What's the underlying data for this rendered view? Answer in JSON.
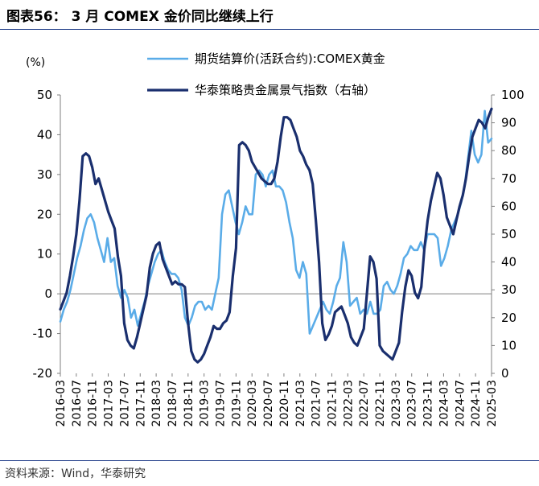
{
  "figure": {
    "title": "图表56： 3 月 COMEX 金价同比继续上行",
    "source": "资料来源：Wind，华泰研究"
  },
  "chart_data": {
    "type": "line",
    "y_left_label": "(%)",
    "y_left_range": [
      -20,
      50
    ],
    "y_left_ticks": [
      "50",
      "40",
      "30",
      "20",
      "10",
      "0",
      "-10",
      "-20"
    ],
    "y_right_range": [
      0,
      100
    ],
    "y_right_ticks": [
      "100",
      "90",
      "80",
      "70",
      "60",
      "50",
      "40",
      "30",
      "20",
      "10",
      "0"
    ],
    "x_ticks": [
      "2016-03",
      "2016-07",
      "2016-11",
      "2017-03",
      "2017-07",
      "2017-11",
      "2018-03",
      "2018-07",
      "2018-11",
      "2019-03",
      "2019-07",
      "2019-11",
      "2020-03",
      "2020-07",
      "2020-11",
      "2021-03",
      "2021-07",
      "2021-11",
      "2022-03",
      "2022-07",
      "2022-11",
      "2023-03",
      "2023-07",
      "2023-11",
      "2024-03",
      "2024-07",
      "2024-11",
      "2025-03"
    ],
    "series": [
      {
        "name": "期货结算价(活跃合约):COMEX黄金",
        "axis": "left",
        "color": "#5aace8",
        "values": [
          -7,
          -4,
          -2,
          1,
          5,
          9,
          12,
          16,
          19,
          20,
          18,
          14,
          11,
          8,
          14,
          8,
          9,
          2,
          -1,
          1,
          -1,
          -6,
          -4,
          -8,
          -5,
          -2,
          2,
          5,
          8,
          10,
          11,
          8,
          6,
          5,
          5,
          4,
          1,
          -6,
          -8,
          -6,
          -3,
          -2,
          -2,
          -4,
          -3,
          -4,
          0,
          4,
          20,
          25,
          26,
          22,
          18,
          15,
          18,
          22,
          20,
          20,
          30,
          31,
          30,
          27,
          30,
          31,
          27,
          27,
          26,
          23,
          18,
          14,
          6,
          4,
          8,
          5,
          -10,
          -8,
          -6,
          -4,
          -2,
          -4,
          -5,
          -2,
          2,
          4,
          13,
          8,
          -3,
          -2,
          -1,
          -5,
          -4,
          -5,
          -2,
          -5,
          -5,
          -4,
          2,
          3,
          1,
          0,
          2,
          5,
          9,
          10,
          12,
          11,
          11,
          13,
          11,
          15,
          15,
          15,
          14,
          7,
          9,
          12,
          16,
          18,
          20,
          23,
          27,
          34,
          41,
          35,
          33,
          35,
          46,
          38,
          39
        ]
      },
      {
        "name": "华泰策略贵金属景气指数（右轴）",
        "axis": "right",
        "color": "#1a2f6e",
        "values": [
          23,
          26,
          29,
          35,
          42,
          50,
          62,
          78,
          79,
          78,
          74,
          68,
          70,
          66,
          62,
          58,
          55,
          52,
          42,
          35,
          18,
          12,
          10,
          9,
          13,
          18,
          23,
          28,
          38,
          43,
          46,
          47,
          41,
          38,
          35,
          32,
          33,
          32,
          32,
          31,
          18,
          8,
          5,
          4,
          5,
          7,
          10,
          13,
          17,
          16,
          16,
          18,
          19,
          22,
          35,
          45,
          82,
          83,
          82,
          80,
          76,
          74,
          72,
          70,
          69,
          68,
          68,
          70,
          76,
          85,
          92,
          92,
          91,
          88,
          85,
          80,
          78,
          75,
          73,
          68,
          55,
          40,
          18,
          12,
          14,
          17,
          22,
          23,
          24,
          21,
          18,
          13,
          11,
          10,
          13,
          16,
          29,
          42,
          40,
          34,
          10,
          8,
          7,
          6,
          5,
          8,
          11,
          22,
          31,
          37,
          35,
          29,
          27,
          31,
          45,
          55,
          62,
          67,
          72,
          70,
          64,
          56,
          53,
          50,
          55,
          60,
          64,
          70,
          78,
          85,
          88,
          91,
          90,
          88,
          92,
          95
        ]
      }
    ]
  }
}
